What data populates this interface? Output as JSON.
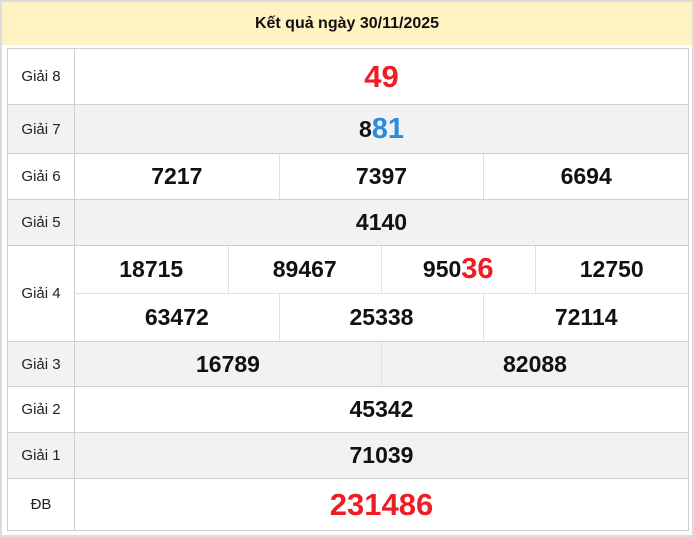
{
  "title": "Kết quả ngày 30/11/2025",
  "colors": {
    "header_bg": "#fff3c2",
    "red": "#ee1c25",
    "blue": "#2a8be0",
    "shade": "#f2f2f2"
  },
  "prizes": [
    {
      "label": "Giải 8",
      "numbers": [
        {
          "prefix": "",
          "suffix": "49",
          "style": "red"
        }
      ]
    },
    {
      "label": "Giải 7",
      "numbers": [
        {
          "prefix": "8",
          "suffix": "81",
          "style": "blue"
        }
      ]
    },
    {
      "label": "Giải 6",
      "numbers": [
        {
          "prefix": "7217"
        },
        {
          "prefix": "7397"
        },
        {
          "prefix": "6694"
        }
      ]
    },
    {
      "label": "Giải 5",
      "numbers": [
        {
          "prefix": "4140"
        }
      ]
    },
    {
      "label": "Giải 4",
      "rows": [
        [
          {
            "prefix": "18715"
          },
          {
            "prefix": "89467"
          },
          {
            "prefix": "950",
            "suffix": "36",
            "style": "red"
          },
          {
            "prefix": "12750"
          }
        ],
        [
          {
            "prefix": "63472"
          },
          {
            "prefix": "25338"
          },
          {
            "prefix": "72114"
          }
        ]
      ]
    },
    {
      "label": "Giải 3",
      "numbers": [
        {
          "prefix": "16789"
        },
        {
          "prefix": "82088"
        }
      ]
    },
    {
      "label": "Giải 2",
      "numbers": [
        {
          "prefix": "45342"
        }
      ]
    },
    {
      "label": "Giải 1",
      "numbers": [
        {
          "prefix": "71039"
        }
      ]
    },
    {
      "label": "ĐB",
      "numbers": [
        {
          "prefix": "",
          "suffix": "231486",
          "style": "red"
        }
      ]
    }
  ]
}
